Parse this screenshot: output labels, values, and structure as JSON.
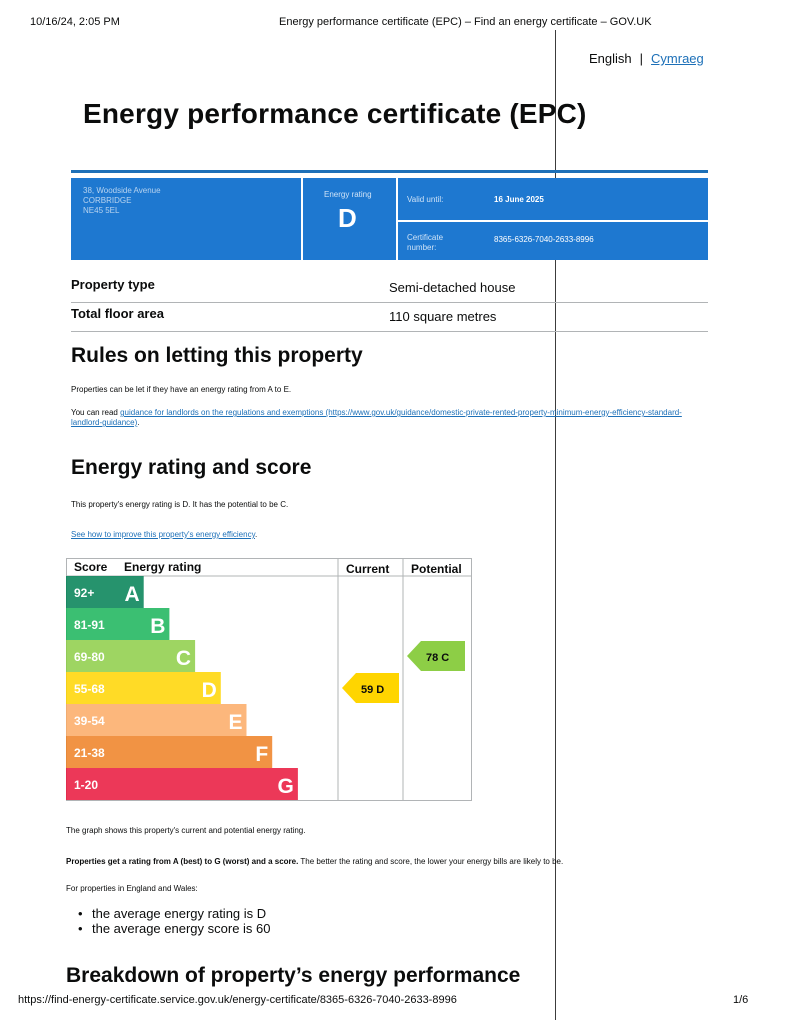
{
  "print_header": {
    "date": "10/16/24, 2:05 PM",
    "title": "Energy performance certificate (EPC) – Find an energy certificate – GOV.UK"
  },
  "language": {
    "current": "English",
    "separator": "|",
    "other": "Cymraeg"
  },
  "page_title": "Energy performance certificate (EPC)",
  "certificate": {
    "address": [
      "38, Woodside Avenue",
      "CORBRIDGE",
      "NE45 5EL"
    ],
    "rating_label": "Energy rating",
    "rating": "D",
    "valid_until_label": "Valid until:",
    "valid_until": "16 June 2025",
    "certificate_number_label": [
      "Certificate",
      "number:"
    ],
    "certificate_number": "8365-6326-7040-2633-8996"
  },
  "summary": [
    {
      "key": "Property type",
      "value": "Semi-detached house"
    },
    {
      "key": "Total floor area",
      "value": "110 square metres"
    }
  ],
  "rules": {
    "heading": "Rules on letting this property",
    "para1": "Properties can be let if they have an energy rating from A to E.",
    "para2_prefix": "You can read ",
    "para2_link": "guidance for landlords on the regulations and exemptions (https://www.gov.uk/guidance/domestic-private-rented-property-minimum-energy-efficiency-standard-landlord-guidance)",
    "para2_suffix": "."
  },
  "energy": {
    "heading": "Energy rating and score",
    "para": "This property's energy rating is D. It has the potential to be C.",
    "improve_link": "See how to improve this property's energy efficiency",
    "improve_suffix": "."
  },
  "chart_data": {
    "type": "bar",
    "headers": {
      "score": "Score",
      "rating": "Energy rating",
      "current": "Current",
      "potential": "Potential"
    },
    "bands": [
      {
        "range": "92+",
        "letter": "A",
        "color": "#008054"
      },
      {
        "range": "81-91",
        "letter": "B",
        "color": "#19b459"
      },
      {
        "range": "69-80",
        "letter": "C",
        "color": "#8dce46"
      },
      {
        "range": "55-68",
        "letter": "D",
        "color": "#ffd500"
      },
      {
        "range": "39-54",
        "letter": "E",
        "color": "#fcaa65"
      },
      {
        "range": "21-38",
        "letter": "F",
        "color": "#ef8023"
      },
      {
        "range": "1-20",
        "letter": "G",
        "color": "#e9153b"
      }
    ],
    "current": {
      "score": 59,
      "letter": "D",
      "label": "59 D",
      "color": "#ffd500"
    },
    "potential": {
      "score": 78,
      "letter": "C",
      "label": "78 C",
      "color": "#8dce46"
    }
  },
  "after_chart": {
    "graph_note": "The graph shows this property's current and potential energy rating.",
    "bold_part": "Properties get a rating from A (best) to G (worst) and a score.",
    "rest_part": " The better the rating and score, the lower your energy bills are likely to be.",
    "england_wales": "For properties in England and Wales:",
    "bullets": [
      "the average energy rating is D",
      "the average energy score is 60"
    ]
  },
  "breakdown_heading": "Breakdown of property’s energy performance",
  "footer": {
    "url": "https://find-energy-certificate.service.gov.uk/energy-certificate/8365-6326-7040-2633-8996",
    "page": "1/6"
  }
}
